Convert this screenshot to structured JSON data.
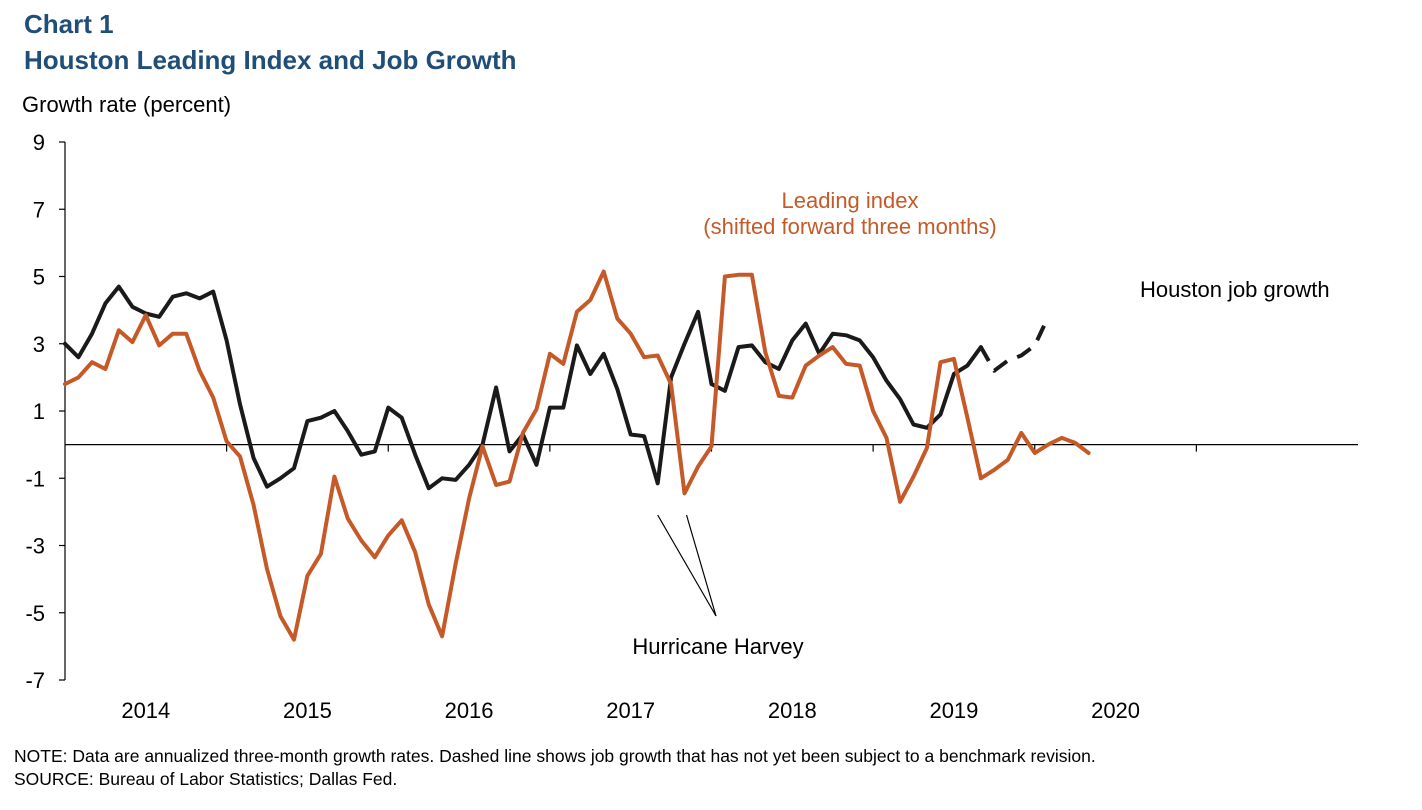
{
  "header": {
    "chart_number": "Chart 1",
    "title": "Houston Leading Index and Job Growth"
  },
  "footer": {
    "note": "NOTE: Data are annualized three-month growth rates. Dashed line shows job growth that has not yet been subject to a benchmark revision.",
    "source": "SOURCE: Bureau of Labor Statistics; Dallas Fed."
  },
  "colors": {
    "title": "#1f4e79",
    "job_growth": "#1a1a1a",
    "leading_index": "#c55a28",
    "axis": "#000000"
  },
  "chart_data": {
    "type": "line",
    "title": "Houston Leading Index and Job Growth",
    "ylabel": "Growth rate (percent)",
    "xlabel": "",
    "ylim": [
      -7,
      9
    ],
    "yticks": [
      -7,
      -5,
      -3,
      -1,
      1,
      3,
      5,
      7,
      9
    ],
    "x_start": 2013.5,
    "x_end": 2021.5,
    "xticks": [
      2014,
      2015,
      2016,
      2017,
      2018,
      2019,
      2020
    ],
    "grid": false,
    "zero_line": true,
    "series": [
      {
        "name": "Houston job growth",
        "color": "#1a1a1a",
        "style": "solid",
        "x": [
          2013.5,
          2013.583,
          2013.667,
          2013.75,
          2013.833,
          2013.917,
          2014.0,
          2014.083,
          2014.167,
          2014.25,
          2014.333,
          2014.417,
          2014.5,
          2014.583,
          2014.667,
          2014.75,
          2014.833,
          2014.917,
          2015.0,
          2015.083,
          2015.167,
          2015.25,
          2015.333,
          2015.417,
          2015.5,
          2015.583,
          2015.667,
          2015.75,
          2015.833,
          2015.917,
          2016.0,
          2016.083,
          2016.167,
          2016.25,
          2016.333,
          2016.417,
          2016.5,
          2016.583,
          2016.667,
          2016.75,
          2016.833,
          2016.917,
          2017.0,
          2017.083,
          2017.167,
          2017.25,
          2017.333,
          2017.417,
          2017.5,
          2017.583,
          2017.667,
          2017.75,
          2017.833,
          2017.917,
          2018.0,
          2018.083,
          2018.167,
          2018.25,
          2018.333,
          2018.417,
          2018.5,
          2018.583,
          2018.667,
          2018.75,
          2018.833,
          2018.917,
          2019.0,
          2019.083,
          2019.167
        ],
        "values": [
          3.0,
          2.6,
          3.3,
          4.2,
          4.7,
          4.1,
          3.9,
          3.8,
          4.4,
          4.5,
          4.35,
          4.55,
          3.1,
          1.2,
          -0.4,
          -1.25,
          -1.0,
          -0.7,
          0.7,
          0.8,
          1.0,
          0.4,
          -0.3,
          -0.2,
          1.1,
          0.8,
          -0.3,
          -1.3,
          -1.0,
          -1.05,
          -0.6,
          0.0,
          1.7,
          -0.2,
          0.3,
          -0.6,
          1.1,
          1.1,
          2.95,
          2.1,
          2.7,
          1.65,
          0.3,
          0.25,
          -1.15,
          2.0,
          3.0,
          3.95,
          1.8,
          1.6,
          2.9,
          2.95,
          2.45,
          2.25,
          3.1,
          3.6,
          2.7,
          3.3,
          3.25,
          3.1,
          2.6,
          1.9,
          1.35,
          0.6,
          0.5,
          0.9,
          2.1,
          2.35,
          2.9
        ]
      },
      {
        "name": "Houston job growth (not yet benchmarked)",
        "color": "#1a1a1a",
        "style": "dashed",
        "x": [
          2019.167,
          2019.25,
          2019.333,
          2019.417,
          2019.5,
          2019.583
        ],
        "values": [
          2.9,
          2.2,
          2.5,
          2.65,
          2.95,
          3.8
        ]
      },
      {
        "name": "Leading index (shifted forward three months)",
        "color": "#c55a28",
        "style": "solid",
        "x": [
          2013.5,
          2013.583,
          2013.667,
          2013.75,
          2013.833,
          2013.917,
          2014.0,
          2014.083,
          2014.167,
          2014.25,
          2014.333,
          2014.417,
          2014.5,
          2014.583,
          2014.667,
          2014.75,
          2014.833,
          2014.917,
          2015.0,
          2015.083,
          2015.167,
          2015.25,
          2015.333,
          2015.417,
          2015.5,
          2015.583,
          2015.667,
          2015.75,
          2015.833,
          2015.917,
          2016.0,
          2016.083,
          2016.167,
          2016.25,
          2016.333,
          2016.417,
          2016.5,
          2016.583,
          2016.667,
          2016.75,
          2016.833,
          2016.917,
          2017.0,
          2017.083,
          2017.167,
          2017.25,
          2017.333,
          2017.417,
          2017.5,
          2017.583,
          2017.667,
          2017.75,
          2017.833,
          2017.917,
          2018.0,
          2018.083,
          2018.167,
          2018.25,
          2018.333,
          2018.417,
          2018.5,
          2018.583,
          2018.667,
          2018.75,
          2018.833,
          2018.917,
          2019.0,
          2019.083,
          2019.167,
          2019.25,
          2019.333,
          2019.417,
          2019.5,
          2019.583,
          2019.667,
          2019.75,
          2019.833
        ],
        "values": [
          1.8,
          2.0,
          2.45,
          2.25,
          3.4,
          3.05,
          3.85,
          2.95,
          3.3,
          3.3,
          2.2,
          1.4,
          0.1,
          -0.35,
          -1.8,
          -3.7,
          -5.1,
          -5.8,
          -3.9,
          -3.25,
          -0.95,
          -2.2,
          -2.85,
          -3.35,
          -2.7,
          -2.25,
          -3.2,
          -4.75,
          -5.7,
          -3.55,
          -1.6,
          -0.05,
          -1.2,
          -1.1,
          0.35,
          1.05,
          2.7,
          2.4,
          3.95,
          4.3,
          5.15,
          3.75,
          3.3,
          2.6,
          2.65,
          1.8,
          -1.45,
          -0.65,
          -0.05,
          5.0,
          5.05,
          5.05,
          2.75,
          1.45,
          1.4,
          2.35,
          2.65,
          2.9,
          2.4,
          2.35,
          1.0,
          0.2,
          -1.7,
          -0.95,
          -0.1,
          2.45,
          2.55,
          0.8,
          -1.0,
          -0.75,
          -0.45,
          0.35,
          -0.25,
          0.0,
          0.2,
          0.05,
          -0.25
        ]
      }
    ],
    "annotations": [
      {
        "text_lines": [
          "Leading index",
          "(shifted forward three months)"
        ],
        "color": "#c55a28"
      },
      {
        "text_lines": [
          "Houston job growth"
        ],
        "color": "#000000"
      },
      {
        "text_lines": [
          "Hurricane Harvey"
        ],
        "color": "#000000",
        "points_to": [
          2017.167,
          2017.333
        ]
      }
    ]
  }
}
